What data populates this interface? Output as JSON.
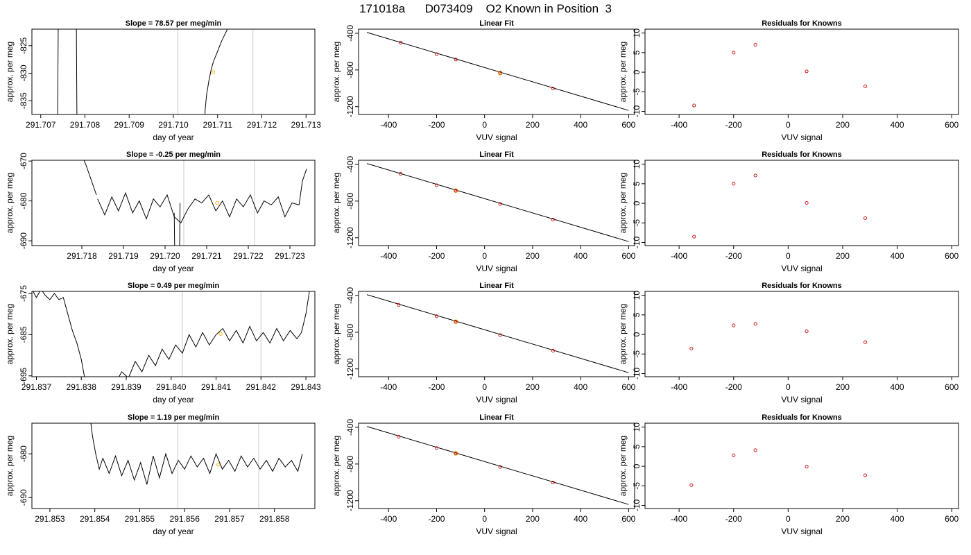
{
  "page_title": "171018a      D073409    O2 Known in Position  3",
  "colors": {
    "trace": "#000000",
    "marker_highlight": "#ffa500",
    "marker_known": "#cc0000",
    "vline": "#c8c8c8",
    "fit_line": "#000000"
  },
  "chart_data": [
    {
      "type": "line",
      "title": "Slope =  78.57  per meg/min",
      "xlabel": "day of year",
      "ylabel": "approx. per meg",
      "xlim": [
        291.7068,
        291.7132
      ],
      "ylim": [
        -837.5,
        -822.0
      ],
      "xticks": [
        291.707,
        291.708,
        291.709,
        291.71,
        291.711,
        291.712,
        291.713
      ],
      "xtick_labels": [
        "291.707",
        "291.708",
        "291.709",
        "291.710",
        "291.711",
        "291.712",
        "291.713"
      ],
      "yticks": [
        -825,
        -830,
        -835
      ],
      "ytick_labels": [
        "-825",
        "-830",
        "-835"
      ],
      "vlines": [
        291.7101,
        291.7118
      ],
      "series": [
        {
          "segments": [
            {
              "x": [
                291.70738,
                291.7074
              ],
              "y": [
                -840,
                -815
              ]
            },
            {
              "x": [
                291.7078,
                291.70782
              ],
              "y": [
                -815,
                -840
              ]
            },
            {
              "x": [
                291.7107,
                291.71072,
                291.71075,
                291.7108,
                291.71085,
                291.7109,
                291.71095,
                291.711,
                291.71105,
                291.7111,
                291.71118,
                291.71125
              ],
              "y": [
                -840,
                -836.5,
                -834.0,
                -831.5,
                -829.5,
                -828.0,
                -827.0,
                -826.0,
                -825.0,
                -824.0,
                -822.7,
                -821.5
              ]
            }
          ]
        }
      ],
      "point": {
        "x": 291.7109,
        "y": -829.8
      }
    },
    {
      "type": "scatter",
      "title": "Linear Fit",
      "xlabel": "VUV signal",
      "ylabel": "approx. per meg",
      "xlim": [
        -525,
        625
      ],
      "ylim": [
        -1285,
        -355
      ],
      "xticks": [
        -400,
        -200,
        0,
        200,
        400,
        600
      ],
      "xtick_labels": [
        "-400",
        "-200",
        "0",
        "200",
        "400",
        "600"
      ],
      "yticks": [
        -400,
        -800,
        -1200
      ],
      "ytick_labels": [
        "-400",
        "-800",
        "-1200"
      ],
      "fit_line": {
        "x": [
          -490,
          600
        ],
        "y": [
          -391,
          -1241
        ]
      },
      "points": {
        "x": [
          -350,
          -200,
          -120,
          65,
          285
        ],
        "y": [
          -502,
          -628,
          -686,
          -832,
          -1002
        ]
      },
      "highlight": {
        "x": 65,
        "y": -832
      }
    },
    {
      "type": "scatter",
      "title": "Residuals for Knowns",
      "xlabel": "VUV signal",
      "ylabel": "approx. per meg",
      "xlim": [
        -525,
        625
      ],
      "ylim": [
        -10.8,
        11.0
      ],
      "xticks": [
        -400,
        -200,
        0,
        200,
        400,
        600
      ],
      "xtick_labels": [
        "-400",
        "-200",
        "0",
        "200",
        "400",
        "600"
      ],
      "yticks": [
        10,
        5,
        0,
        -5,
        -10
      ],
      "ytick_labels": [
        "10",
        "5",
        "0",
        "-5",
        "-10"
      ],
      "points": {
        "x": [
          -345,
          -200,
          -120,
          68,
          283
        ],
        "y": [
          -8.5,
          5.0,
          7.0,
          0.2,
          -3.6
        ]
      }
    },
    {
      "type": "line",
      "title": "Slope =  -0.25  per meg/min",
      "xlabel": "day of year",
      "ylabel": "approx. per meg",
      "xlim": [
        291.7168,
        291.7236
      ],
      "ylim": [
        -691.2,
        -669.8
      ],
      "xticks": [
        291.718,
        291.719,
        291.72,
        291.721,
        291.722,
        291.723
      ],
      "xtick_labels": [
        "291.718",
        "291.719",
        "291.720",
        "291.721",
        "291.722",
        "291.723"
      ],
      "yticks": [
        -670,
        -680,
        -690
      ],
      "ytick_labels": [
        "-670",
        "-680",
        "-690"
      ],
      "vlines": [
        291.72045,
        291.72215
      ],
      "series": [
        {
          "segments": [
            {
              "x": [
                291.718,
                291.7181,
                291.7182,
                291.71835
              ],
              "y": [
                -668.5,
                -671.0,
                -674.0,
                -678.5
              ]
            },
            {
              "x": [
                291.71838,
                291.71855,
                291.71872,
                291.71888,
                291.71905,
                291.71922,
                291.71938,
                291.71955,
                291.71972,
                291.71988,
                291.72005,
                291.72022,
                291.72038,
                291.72055,
                291.72072,
                291.72088,
                291.72105,
                291.72122,
                291.72138,
                291.72155,
                291.72172,
                291.72188,
                291.72205,
                291.72222,
                291.72238,
                291.72255,
                291.72272,
                291.72288,
                291.72305,
                291.72322
              ],
              "y": [
                -679.5,
                -683.5,
                -679.0,
                -682.5,
                -678.0,
                -683.0,
                -680.0,
                -684.5,
                -679.5,
                -681.5,
                -678.5,
                -684.0,
                -685.5,
                -682.0,
                -679.5,
                -680.5,
                -678.5,
                -682.5,
                -680.0,
                -684.0,
                -679.5,
                -681.5,
                -678.5,
                -683.0,
                -680.0,
                -681.0,
                -679.0,
                -684.0,
                -680.5,
                -681.0
              ]
            },
            {
              "x": [
                291.72022,
                291.72023
              ],
              "y": [
                -683.0,
                -692.0
              ]
            },
            {
              "x": [
                291.72035,
                291.72036
              ],
              "y": [
                -692.0,
                -680.5
              ]
            },
            {
              "x": [
                291.72322,
                291.7233,
                291.7234
              ],
              "y": [
                -681.0,
                -675.0,
                -672.0
              ]
            }
          ]
        }
      ],
      "point": {
        "x": 291.72125,
        "y": -680.5
      }
    },
    {
      "type": "scatter",
      "title": "Linear Fit",
      "xlabel": "VUV signal",
      "ylabel": "approx. per meg",
      "xlim": [
        -525,
        625
      ],
      "ylim": [
        -1285,
        -355
      ],
      "xticks": [
        -400,
        -200,
        0,
        200,
        400,
        600
      ],
      "xtick_labels": [
        "-400",
        "-200",
        "0",
        "200",
        "400",
        "600"
      ],
      "yticks": [
        -400,
        -800,
        -1200
      ],
      "ytick_labels": [
        "-400",
        "-800",
        "-1200"
      ],
      "fit_line": {
        "x": [
          -490,
          600
        ],
        "y": [
          -391,
          -1241
        ]
      },
      "points": {
        "x": [
          -350,
          -200,
          -120,
          65,
          285
        ],
        "y": [
          -502,
          -628,
          -686,
          -832,
          -1002
        ]
      },
      "highlight": {
        "x": -120,
        "y": -686
      }
    },
    {
      "type": "scatter",
      "title": "Residuals for Knowns",
      "xlabel": "VUV signal",
      "ylabel": "approx. per meg",
      "xlim": [
        -525,
        625
      ],
      "ylim": [
        -10.8,
        11.0
      ],
      "xticks": [
        -400,
        -200,
        0,
        200,
        400,
        600
      ],
      "xtick_labels": [
        "-400",
        "-200",
        "0",
        "200",
        "400",
        "600"
      ],
      "yticks": [
        10,
        5,
        0,
        -5,
        -10
      ],
      "ytick_labels": [
        "10",
        "5",
        "0",
        "-5",
        "-10"
      ],
      "points": {
        "x": [
          -345,
          -200,
          -120,
          68,
          283
        ],
        "y": [
          -8.5,
          5.0,
          7.1,
          0.1,
          -3.8
        ]
      }
    },
    {
      "type": "line",
      "title": "Slope =  0.49  per meg/min",
      "xlabel": "day of year",
      "ylabel": "approx. per meg",
      "xlim": [
        291.8369,
        291.8432
      ],
      "ylim": [
        -695.2,
        -674.5
      ],
      "xticks": [
        291.837,
        291.838,
        291.839,
        291.84,
        291.841,
        291.842,
        291.843
      ],
      "xtick_labels": [
        "291.837",
        "291.838",
        "291.839",
        "291.840",
        "291.841",
        "291.842",
        "291.843"
      ],
      "yticks": [
        -675,
        -685,
        -695
      ],
      "ytick_labels": [
        "-675",
        "-685",
        "-695"
      ],
      "vlines": [
        291.84025,
        291.842
      ],
      "series": [
        {
          "segments": [
            {
              "x": [
                291.8369,
                291.837,
                291.8371,
                291.8372,
                291.8373,
                291.8374,
                291.8375,
                291.8376,
                291.8377,
                291.8378,
                291.8379,
                291.838,
                291.8381
              ],
              "y": [
                -674.0,
                -676.0,
                -674.0,
                -675.5,
                -676.5,
                -675.0,
                -676.5,
                -676.0,
                -680.0,
                -684.0,
                -687.0,
                -691.0,
                -697.0
              ]
            },
            {
              "x": [
                291.8388,
                291.8389,
                291.83905,
                291.8392,
                291.83935,
                291.8395,
                291.83965,
                291.8398,
                291.83995,
                291.8401,
                291.84025,
                291.8404,
                291.84055,
                291.8407,
                291.84085,
                291.841,
                291.84115,
                291.8413,
                291.84145,
                291.8416,
                291.84175,
                291.8419,
                291.84205,
                291.8422,
                291.84235,
                291.8425,
                291.84265,
                291.8428,
                291.8429,
                291.843,
                291.8431
              ],
              "y": [
                -696.0,
                -694.0,
                -695.5,
                -691.5,
                -694.0,
                -690.0,
                -692.5,
                -688.5,
                -691.0,
                -687.5,
                -689.5,
                -685.0,
                -688.0,
                -684.5,
                -687.5,
                -685.0,
                -683.5,
                -686.5,
                -684.0,
                -687.0,
                -683.0,
                -686.5,
                -684.5,
                -687.0,
                -683.5,
                -686.5,
                -684.0,
                -686.0,
                -684.5,
                -680.0,
                -673.0
              ]
            }
          ]
        }
      ],
      "point": {
        "x": 291.8411,
        "y": -684.8
      }
    },
    {
      "type": "scatter",
      "title": "Linear Fit",
      "xlabel": "VUV signal",
      "ylabel": "approx. per meg",
      "xlim": [
        -525,
        625
      ],
      "ylim": [
        -1285,
        -355
      ],
      "xticks": [
        -400,
        -200,
        0,
        200,
        400,
        600
      ],
      "xtick_labels": [
        "-400",
        "-200",
        "0",
        "200",
        "400",
        "600"
      ],
      "yticks": [
        -400,
        -800,
        -1200
      ],
      "ytick_labels": [
        "-400",
        "-800",
        "-1200"
      ],
      "fit_line": {
        "x": [
          -490,
          600
        ],
        "y": [
          -391,
          -1241
        ]
      },
      "points": {
        "x": [
          -358,
          -200,
          -120,
          65,
          285
        ],
        "y": [
          -503,
          -627,
          -685,
          -832,
          -1002
        ]
      },
      "highlight": {
        "x": -120,
        "y": -685
      }
    },
    {
      "type": "scatter",
      "title": "Residuals for Knowns",
      "xlabel": "VUV signal",
      "ylabel": "approx. per meg",
      "xlim": [
        -525,
        625
      ],
      "ylim": [
        -10.8,
        11.0
      ],
      "xticks": [
        -400,
        -200,
        0,
        200,
        400,
        600
      ],
      "xtick_labels": [
        "-400",
        "-200",
        "0",
        "200",
        "400",
        "600"
      ],
      "yticks": [
        10,
        5,
        0,
        -5,
        -10
      ],
      "ytick_labels": [
        "10",
        "5",
        "0",
        "-5",
        "-10"
      ],
      "points": {
        "x": [
          -355,
          -200,
          -120,
          68,
          283
        ],
        "y": [
          -3.6,
          2.3,
          2.7,
          0.8,
          -2.0
        ]
      }
    },
    {
      "type": "line",
      "title": "Slope =  1.19  per meg/min",
      "xlabel": "day of year",
      "ylabel": "approx. per meg",
      "xlim": [
        291.8526,
        291.8589
      ],
      "ylim": [
        -692.5,
        -673.0
      ],
      "xticks": [
        291.853,
        291.854,
        291.855,
        291.856,
        291.857,
        291.858
      ],
      "xtick_labels": [
        "291.853",
        "291.854",
        "291.855",
        "291.856",
        "291.857",
        "291.858"
      ],
      "yticks": [
        -680,
        -690
      ],
      "ytick_labels": [
        "-680",
        "-690"
      ],
      "vlines": [
        291.85585,
        291.85765
      ],
      "series": [
        {
          "segments": [
            {
              "x": [
                291.8539,
                291.85395,
                291.85402,
                291.8541,
                291.85418,
                291.85432,
                291.85446,
                291.8546,
                291.85474,
                291.85488,
                291.85502,
                291.85516,
                291.8553,
                291.85544,
                291.85558,
                291.85572,
                291.85586,
                291.856,
                291.85614,
                291.85628,
                291.85642,
                291.85656,
                291.8567,
                291.85684,
                291.85698,
                291.85712,
                291.85726,
                291.8574,
                291.85754,
                291.85768,
                291.85782,
                291.85796,
                291.8581,
                291.85824,
                291.85838,
                291.85852,
                291.85862
              ],
              "y": [
                -672.0,
                -676.0,
                -680.0,
                -683.5,
                -681.0,
                -684.5,
                -680.5,
                -685.0,
                -681.5,
                -686.0,
                -682.0,
                -687.0,
                -680.5,
                -685.5,
                -680.0,
                -684.5,
                -681.5,
                -683.5,
                -680.5,
                -683.0,
                -681.0,
                -684.5,
                -680.0,
                -683.5,
                -681.5,
                -684.0,
                -680.5,
                -683.0,
                -681.0,
                -683.5,
                -681.5,
                -684.0,
                -681.0,
                -683.0,
                -681.5,
                -684.0,
                -680.0
              ]
            }
          ]
        }
      ],
      "point": {
        "x": 291.85675,
        "y": -682.5
      }
    },
    {
      "type": "scatter",
      "title": "Linear Fit",
      "xlabel": "VUV signal",
      "ylabel": "approx. per meg",
      "xlim": [
        -525,
        625
      ],
      "ylim": [
        -1285,
        -355
      ],
      "xticks": [
        -400,
        -200,
        0,
        200,
        400,
        600
      ],
      "xtick_labels": [
        "-400",
        "-200",
        "0",
        "200",
        "400",
        "600"
      ],
      "yticks": [
        -400,
        -800,
        -1200
      ],
      "ytick_labels": [
        "-400",
        "-800",
        "-1200"
      ],
      "fit_line": {
        "x": [
          -490,
          600
        ],
        "y": [
          -391,
          -1241
        ]
      },
      "points": {
        "x": [
          -358,
          -200,
          -120,
          65,
          285
        ],
        "y": [
          -503,
          -627,
          -684,
          -832,
          -1002
        ]
      },
      "highlight": {
        "x": -120,
        "y": -684
      }
    },
    {
      "type": "scatter",
      "title": "Residuals for Knowns",
      "xlabel": "VUV signal",
      "ylabel": "approx. per meg",
      "xlim": [
        -525,
        625
      ],
      "ylim": [
        -10.8,
        11.0
      ],
      "xticks": [
        -400,
        -200,
        0,
        200,
        400,
        600
      ],
      "xtick_labels": [
        "-400",
        "-200",
        "0",
        "200",
        "400",
        "600"
      ],
      "yticks": [
        10,
        5,
        0,
        -5,
        -10
      ],
      "ytick_labels": [
        "10",
        "5",
        "0",
        "-5",
        "-10"
      ],
      "points": {
        "x": [
          -355,
          -200,
          -120,
          68,
          283
        ],
        "y": [
          -4.8,
          2.8,
          4.1,
          -0.1,
          -2.3
        ]
      }
    }
  ]
}
